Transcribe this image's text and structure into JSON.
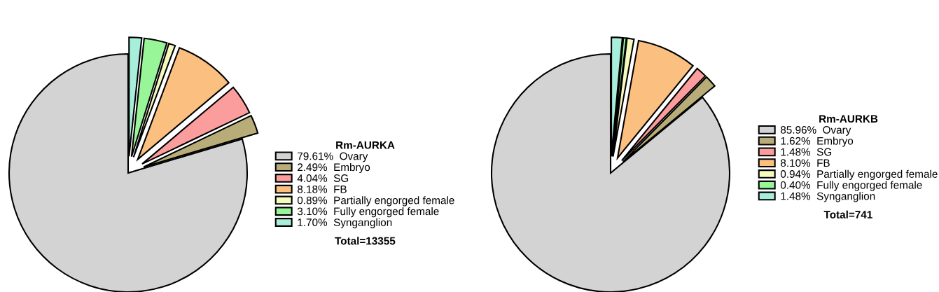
{
  "chart_data": [
    {
      "type": "pie",
      "legend_title": "Rm-AURKA",
      "legend": "right",
      "categories": [
        "Ovary",
        "Embryo",
        "SG",
        "FB",
        "Partially engorged female",
        "Fully engorged female",
        "Synganglion"
      ],
      "values": [
        79.61,
        2.49,
        4.04,
        8.18,
        0.89,
        3.1,
        1.7
      ],
      "value_labels": [
        "79.61%",
        "2.49%",
        "4.04%",
        "8.18%",
        "0.89%",
        "3.10%",
        "1.70%"
      ],
      "colors": [
        "#d3d3d3",
        "#b8ad78",
        "#fc9d9d",
        "#fbbf80",
        "#f5fbbf",
        "#98f598",
        "#a8efdb"
      ],
      "annotations": [
        "Total=13355"
      ]
    },
    {
      "type": "pie",
      "legend_title": "Rm-AURKB",
      "legend": "right",
      "categories": [
        "Ovary",
        "Embryo",
        "SG",
        "FB",
        "Partially engorged female",
        "Fully engorged female",
        "Synganglion"
      ],
      "values": [
        85.96,
        1.62,
        1.48,
        8.1,
        0.94,
        0.4,
        1.48
      ],
      "value_labels": [
        "85.96%",
        "1.62%",
        "1.48%",
        "8.10%",
        "0.94%",
        "0.40%",
        "1.48%"
      ],
      "colors": [
        "#d3d3d3",
        "#b8ad78",
        "#fc9d9d",
        "#fbbf80",
        "#f5fbbf",
        "#98f598",
        "#a8efdb"
      ],
      "annotations": [
        "Total=741"
      ]
    }
  ]
}
